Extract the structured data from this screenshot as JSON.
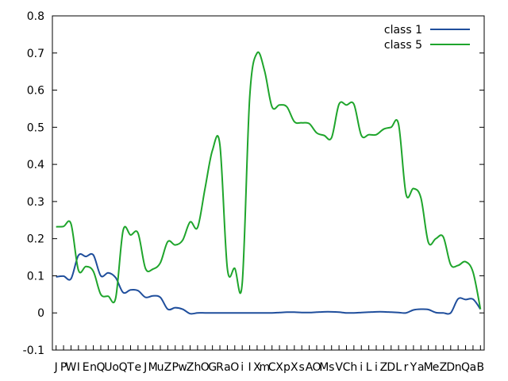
{
  "chart_data": {
    "type": "line",
    "title": "",
    "xlabel": "",
    "ylabel": "",
    "ylim": [
      -0.1,
      0.8
    ],
    "yticks": [
      -0.1,
      0,
      0.1,
      0.2,
      0.3,
      0.4,
      0.5,
      0.6,
      0.7,
      0.8
    ],
    "ytick_labels": [
      "-0.1",
      "0",
      "0.1",
      "0.2",
      "0.3",
      "0.4",
      "0.5",
      "0.6",
      "0.7",
      "0.8"
    ],
    "grid": false,
    "legend_position": "top-right",
    "categories": [
      "J",
      "P",
      "W",
      "I",
      "E",
      "n",
      "Q",
      "U",
      "o",
      "Q",
      "T",
      "e",
      "J",
      "M",
      "u",
      "Z",
      "P",
      "w",
      "Z",
      "h",
      "O",
      "G",
      "R",
      "a",
      "O",
      "i",
      "I",
      "X",
      "m",
      "C",
      "X",
      "p",
      "X",
      "s",
      "A",
      "O",
      "M",
      "s",
      "V",
      "C",
      "h",
      "i",
      "L",
      "i",
      "Z",
      "D",
      "L",
      "r",
      "Y",
      "a",
      "M",
      "e",
      "Z",
      "D",
      "n",
      "Q",
      "a",
      "B"
    ],
    "series": [
      {
        "name": "class 1",
        "color": "#1f4e9c",
        "values": [
          0.097,
          0.099,
          0.092,
          0.155,
          0.152,
          0.156,
          0.1,
          0.108,
          0.095,
          0.055,
          0.062,
          0.06,
          0.042,
          0.046,
          0.042,
          0.01,
          0.014,
          0.01,
          -0.002,
          0.0,
          0.0,
          0.0,
          0.0,
          0.0,
          0.0,
          0.0,
          0.0,
          0.0,
          0.0,
          0.0,
          0.001,
          0.002,
          0.002,
          0.001,
          0.001,
          0.002,
          0.003,
          0.003,
          0.002,
          0.0,
          0.0,
          0.001,
          0.002,
          0.003,
          0.003,
          0.002,
          0.001,
          0.0,
          0.008,
          0.01,
          0.009,
          0.001,
          0.0,
          0.0,
          0.038,
          0.036,
          0.037,
          0.01
        ]
      },
      {
        "name": "class 5",
        "color": "#1fa52c",
        "values": [
          0.232,
          0.233,
          0.24,
          0.115,
          0.125,
          0.112,
          0.05,
          0.045,
          0.04,
          0.222,
          0.21,
          0.215,
          0.12,
          0.118,
          0.135,
          0.192,
          0.183,
          0.196,
          0.245,
          0.23,
          0.335,
          0.438,
          0.453,
          0.12,
          0.12,
          0.08,
          0.58,
          0.7,
          0.652,
          0.555,
          0.56,
          0.555,
          0.515,
          0.512,
          0.51,
          0.485,
          0.478,
          0.472,
          0.562,
          0.56,
          0.562,
          0.478,
          0.48,
          0.48,
          0.495,
          0.5,
          0.508,
          0.32,
          0.335,
          0.31,
          0.19,
          0.2,
          0.205,
          0.13,
          0.128,
          0.138,
          0.11,
          0.01
        ]
      }
    ]
  }
}
